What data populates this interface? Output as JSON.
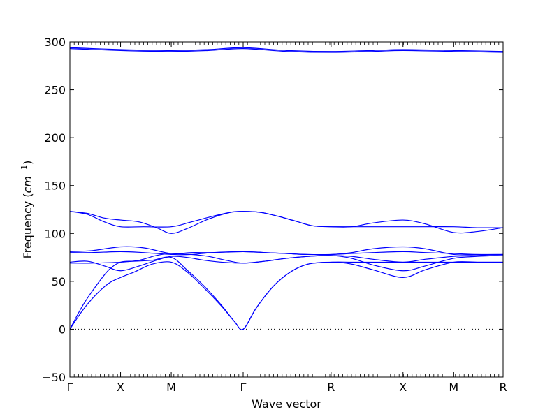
{
  "chart_data": {
    "type": "line",
    "title": "",
    "xlabel": "Wave vector",
    "ylabel": "Frequency",
    "ylabel_unit": "cm",
    "ylabel_unit_power": "−1",
    "ylim": [
      -50,
      300
    ],
    "yticks": [
      -50,
      0,
      50,
      100,
      150,
      200,
      250,
      300
    ],
    "xlim": [
      0,
      1
    ],
    "grid": false,
    "legend": "none",
    "line_color": "#0000ff",
    "zero_line_color": "#000000",
    "high_symmetry_points": [
      {
        "label": "Γ",
        "x": 0.0
      },
      {
        "label": "X",
        "x": 0.117
      },
      {
        "label": "M",
        "x": 0.234
      },
      {
        "label": "Γ",
        "x": 0.4
      },
      {
        "label": "R",
        "x": 0.603
      },
      {
        "label": "X",
        "x": 0.769
      },
      {
        "label": "M",
        "x": 0.886
      },
      {
        "label": "R",
        "x": 1.0
      }
    ],
    "series": [
      {
        "values": [
          [
            0.0,
            0
          ],
          [
            0.03,
            25
          ],
          [
            0.06,
            45
          ],
          [
            0.09,
            62
          ],
          [
            0.117,
            70
          ],
          [
            0.15,
            71
          ],
          [
            0.19,
            72
          ],
          [
            0.234,
            75
          ],
          [
            0.27,
            62
          ],
          [
            0.31,
            45
          ],
          [
            0.35,
            25
          ],
          [
            0.38,
            8
          ],
          [
            0.4,
            0
          ],
          [
            0.43,
            22
          ],
          [
            0.47,
            45
          ],
          [
            0.51,
            60
          ],
          [
            0.55,
            68
          ],
          [
            0.603,
            70
          ],
          [
            0.65,
            70
          ],
          [
            0.7,
            70
          ],
          [
            0.769,
            70
          ],
          [
            0.82,
            70
          ],
          [
            0.886,
            70
          ],
          [
            0.94,
            70
          ],
          [
            1.0,
            70
          ]
        ]
      },
      {
        "values": [
          [
            0.0,
            0
          ],
          [
            0.03,
            20
          ],
          [
            0.06,
            36
          ],
          [
            0.09,
            48
          ],
          [
            0.117,
            54
          ],
          [
            0.15,
            60
          ],
          [
            0.19,
            68
          ],
          [
            0.234,
            70
          ],
          [
            0.27,
            60
          ],
          [
            0.31,
            43
          ],
          [
            0.35,
            24
          ],
          [
            0.38,
            8
          ],
          [
            0.4,
            0
          ],
          [
            0.43,
            22
          ],
          [
            0.47,
            45
          ],
          [
            0.51,
            60
          ],
          [
            0.55,
            68
          ],
          [
            0.603,
            70
          ],
          [
            0.65,
            68
          ],
          [
            0.7,
            62
          ],
          [
            0.769,
            54
          ],
          [
            0.82,
            62
          ],
          [
            0.886,
            70
          ],
          [
            0.94,
            70
          ],
          [
            1.0,
            70
          ]
        ]
      },
      {
        "values": [
          [
            0.0,
            70
          ],
          [
            0.04,
            71
          ],
          [
            0.08,
            66
          ],
          [
            0.117,
            61
          ],
          [
            0.16,
            66
          ],
          [
            0.2,
            72
          ],
          [
            0.234,
            76
          ],
          [
            0.27,
            75
          ],
          [
            0.31,
            72
          ],
          [
            0.35,
            70
          ],
          [
            0.4,
            69
          ],
          [
            0.45,
            71
          ],
          [
            0.5,
            74
          ],
          [
            0.55,
            76
          ],
          [
            0.603,
            77
          ],
          [
            0.65,
            74
          ],
          [
            0.7,
            67
          ],
          [
            0.769,
            61
          ],
          [
            0.82,
            66
          ],
          [
            0.886,
            74
          ],
          [
            0.94,
            76
          ],
          [
            1.0,
            77
          ]
        ]
      },
      {
        "values": [
          [
            0.0,
            69
          ],
          [
            0.05,
            69
          ],
          [
            0.117,
            70
          ],
          [
            0.16,
            72
          ],
          [
            0.2,
            77
          ],
          [
            0.234,
            79
          ],
          [
            0.28,
            78
          ],
          [
            0.32,
            76
          ],
          [
            0.36,
            72
          ],
          [
            0.4,
            69
          ],
          [
            0.45,
            71
          ],
          [
            0.5,
            74
          ],
          [
            0.55,
            76
          ],
          [
            0.603,
            77
          ],
          [
            0.65,
            76
          ],
          [
            0.7,
            73
          ],
          [
            0.769,
            70
          ],
          [
            0.82,
            73
          ],
          [
            0.886,
            76
          ],
          [
            0.94,
            77
          ],
          [
            1.0,
            78
          ]
        ]
      },
      {
        "values": [
          [
            0.0,
            80
          ],
          [
            0.05,
            80
          ],
          [
            0.117,
            81
          ],
          [
            0.17,
            80
          ],
          [
            0.234,
            78
          ],
          [
            0.28,
            78
          ],
          [
            0.33,
            80
          ],
          [
            0.4,
            81
          ],
          [
            0.45,
            80
          ],
          [
            0.5,
            79
          ],
          [
            0.55,
            78
          ],
          [
            0.603,
            78
          ],
          [
            0.65,
            79
          ],
          [
            0.7,
            80
          ],
          [
            0.769,
            81
          ],
          [
            0.82,
            80
          ],
          [
            0.886,
            79
          ],
          [
            0.94,
            78
          ],
          [
            1.0,
            78
          ]
        ]
      },
      {
        "values": [
          [
            0.0,
            81
          ],
          [
            0.05,
            82
          ],
          [
            0.117,
            86
          ],
          [
            0.17,
            85
          ],
          [
            0.234,
            79
          ],
          [
            0.28,
            80
          ],
          [
            0.33,
            80
          ],
          [
            0.4,
            81
          ],
          [
            0.45,
            80
          ],
          [
            0.5,
            79
          ],
          [
            0.55,
            78
          ],
          [
            0.603,
            78
          ],
          [
            0.65,
            80
          ],
          [
            0.7,
            84
          ],
          [
            0.769,
            86
          ],
          [
            0.82,
            84
          ],
          [
            0.886,
            78
          ],
          [
            0.94,
            78
          ],
          [
            1.0,
            78
          ]
        ]
      },
      {
        "values": [
          [
            0.0,
            123
          ],
          [
            0.04,
            120
          ],
          [
            0.08,
            112
          ],
          [
            0.117,
            107
          ],
          [
            0.17,
            107
          ],
          [
            0.234,
            107
          ],
          [
            0.28,
            112
          ],
          [
            0.33,
            118
          ],
          [
            0.37,
            122
          ],
          [
            0.4,
            123
          ],
          [
            0.44,
            122
          ],
          [
            0.48,
            118
          ],
          [
            0.52,
            113
          ],
          [
            0.56,
            108
          ],
          [
            0.603,
            107
          ],
          [
            0.65,
            107
          ],
          [
            0.7,
            107
          ],
          [
            0.769,
            107
          ],
          [
            0.82,
            107
          ],
          [
            0.886,
            107
          ],
          [
            0.94,
            106
          ],
          [
            1.0,
            106
          ]
        ]
      },
      {
        "values": [
          [
            0.0,
            123
          ],
          [
            0.04,
            121
          ],
          [
            0.08,
            116
          ],
          [
            0.117,
            114
          ],
          [
            0.16,
            112
          ],
          [
            0.2,
            106
          ],
          [
            0.234,
            100
          ],
          [
            0.27,
            105
          ],
          [
            0.32,
            115
          ],
          [
            0.37,
            122
          ],
          [
            0.4,
            123
          ],
          [
            0.44,
            122
          ],
          [
            0.48,
            118
          ],
          [
            0.52,
            113
          ],
          [
            0.56,
            108
          ],
          [
            0.603,
            107
          ],
          [
            0.65,
            107
          ],
          [
            0.7,
            111
          ],
          [
            0.769,
            114
          ],
          [
            0.82,
            110
          ],
          [
            0.886,
            101
          ],
          [
            0.94,
            102
          ],
          [
            1.0,
            106
          ]
        ]
      },
      {
        "values": [
          [
            0.0,
            294
          ],
          [
            0.117,
            292
          ],
          [
            0.234,
            291
          ],
          [
            0.32,
            292
          ],
          [
            0.4,
            294
          ],
          [
            0.5,
            291
          ],
          [
            0.603,
            290
          ],
          [
            0.7,
            291
          ],
          [
            0.769,
            292
          ],
          [
            0.886,
            291
          ],
          [
            1.0,
            290
          ]
        ]
      },
      {
        "values": [
          [
            0.0,
            293
          ],
          [
            0.117,
            291
          ],
          [
            0.234,
            290
          ],
          [
            0.32,
            291
          ],
          [
            0.4,
            293
          ],
          [
            0.5,
            290
          ],
          [
            0.603,
            289
          ],
          [
            0.7,
            290
          ],
          [
            0.769,
            291
          ],
          [
            0.886,
            290
          ],
          [
            1.0,
            289
          ]
        ]
      }
    ]
  }
}
